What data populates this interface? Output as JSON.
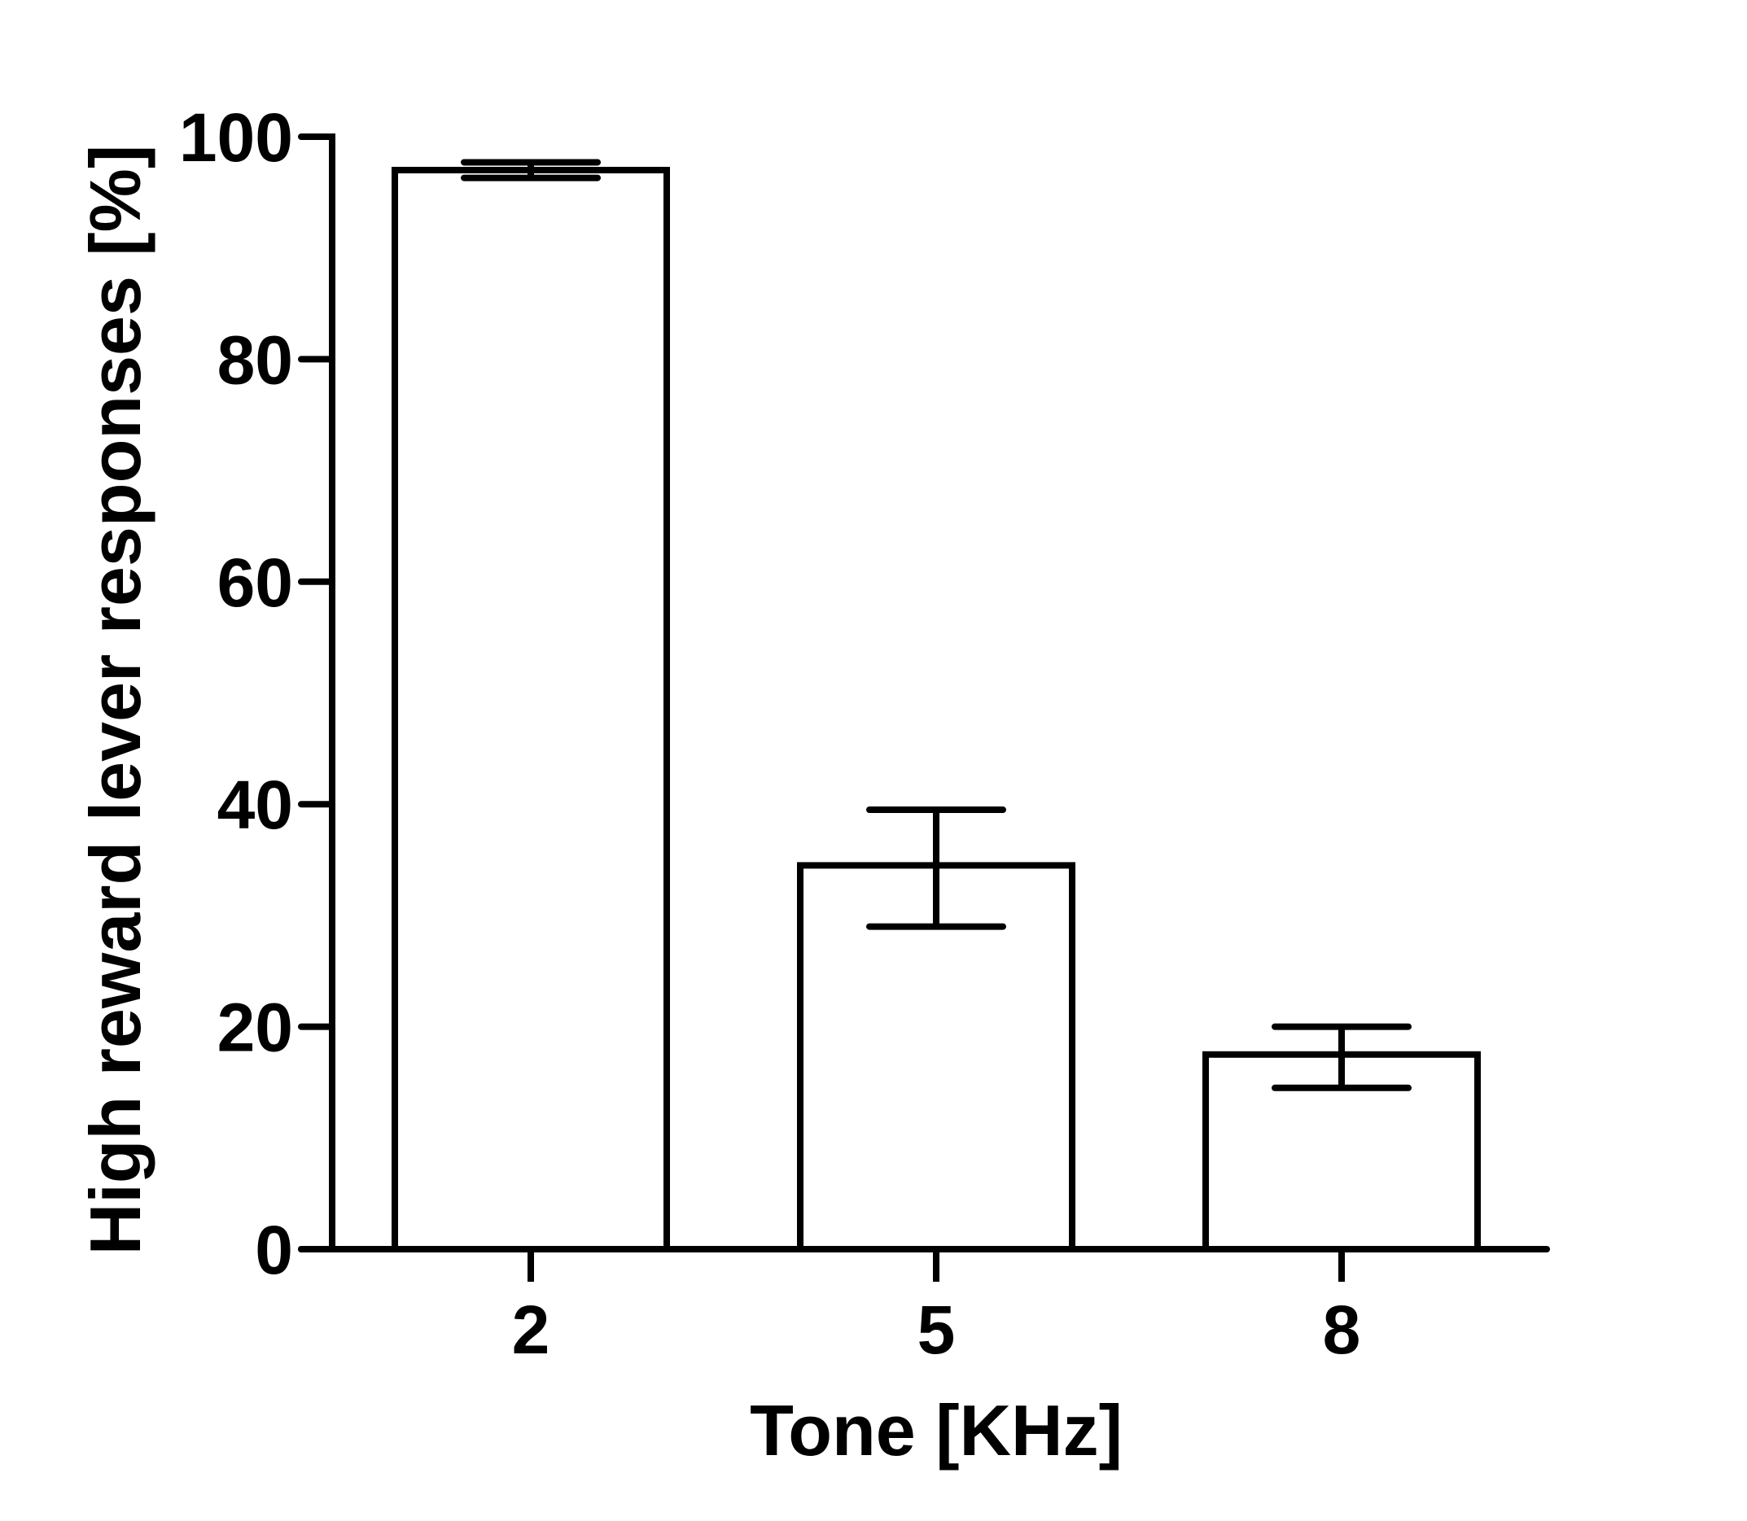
{
  "chart_data": {
    "type": "bar",
    "title": "",
    "xlabel": "Tone [KHz]",
    "ylabel": "High reward lever responses [%]",
    "categories": [
      "2",
      "5",
      "8"
    ],
    "values": [
      97,
      34.5,
      17.5
    ],
    "error_bars": [
      {
        "low": 96.3,
        "high": 97.7
      },
      {
        "low": 29,
        "high": 39.5
      },
      {
        "low": 14.5,
        "high": 20
      }
    ],
    "ylim": [
      0,
      100
    ],
    "yticks": [
      0,
      20,
      40,
      60,
      80,
      100
    ],
    "ytick_labels": [
      "0",
      "20",
      "40",
      "60",
      "80",
      "100"
    ],
    "grid": false,
    "legend": false,
    "colors": {
      "bar_fill": "#ffffff",
      "bar_stroke": "#000000",
      "axis": "#000000"
    }
  }
}
